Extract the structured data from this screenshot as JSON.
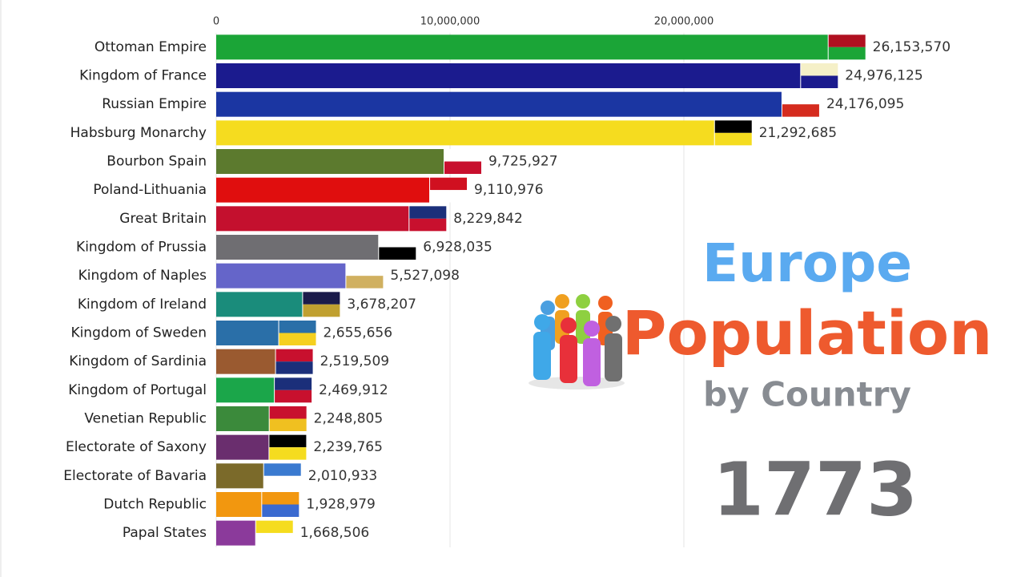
{
  "chart_data": {
    "type": "bar",
    "orientation": "horizontal",
    "title_lines": [
      "Europe",
      "Population",
      "by Country"
    ],
    "year": "1773",
    "categories": [
      "Ottoman Empire",
      "Kingdom of France",
      "Russian Empire",
      "Habsburg Monarchy",
      "Bourbon Spain",
      "Poland-Lithuania",
      "Great Britain",
      "Kingdom of Prussia",
      "Kingdom of Naples",
      "Kingdom of Ireland",
      "Kingdom of Sweden",
      "Kingdom of Sardinia",
      "Kingdom of Portugal",
      "Venetian Republic",
      "Electorate of Saxony",
      "Electorate of Bavaria",
      "Dutch Republic",
      "Papal States"
    ],
    "values": [
      26153570,
      24976125,
      24176095,
      21292685,
      9725927,
      9110976,
      8229842,
      6928035,
      5527098,
      3678207,
      2655656,
      2519509,
      2469912,
      2248805,
      2239765,
      2010933,
      1928979,
      1668506
    ],
    "value_labels": [
      "26,153,570",
      "24,976,125",
      "24,176,095",
      "21,292,685",
      "9,725,927",
      "9,110,976",
      "8,229,842",
      "6,928,035",
      "5,527,098",
      "3,678,207",
      "2,655,656",
      "2,519,509",
      "2,469,912",
      "2,248,805",
      "2,239,765",
      "2,010,933",
      "1,928,979",
      "1,668,506"
    ],
    "colors": [
      "#1ba537",
      "#1b1b8e",
      "#1b36a2",
      "#f5dc1f",
      "#5c7a2e",
      "#e00e0e",
      "#c4102e",
      "#6f6e72",
      "#6565c9",
      "#1a8c7b",
      "#2a6fa8",
      "#9a5a30",
      "#1ba64a",
      "#3b8a3b",
      "#6a2e6e",
      "#7b6a2a",
      "#f2970f",
      "#8b3a9b"
    ],
    "xlim": [
      0,
      30000000
    ],
    "xticks": [
      0,
      {
        "value": 10000000,
        "label": "10,000,000"
      },
      {
        "value": 20000000,
        "label": "20,000,000"
      }
    ],
    "grid": true
  }
}
